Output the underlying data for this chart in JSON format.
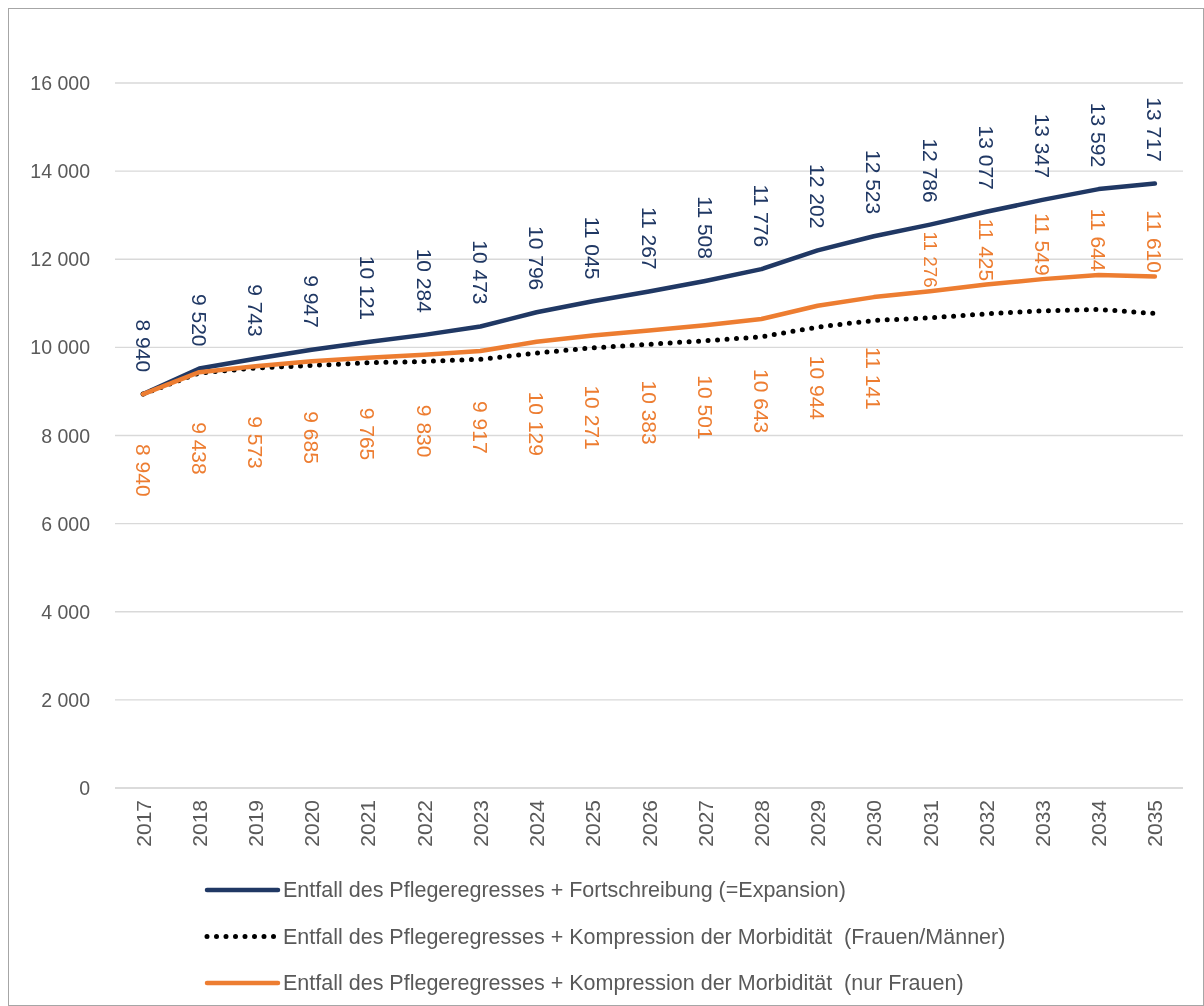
{
  "chart_data": {
    "type": "line",
    "categories": [
      "2017",
      "2018",
      "2019",
      "2020",
      "2021",
      "2022",
      "2023",
      "2024",
      "2025",
      "2026",
      "2027",
      "2028",
      "2029",
      "2030",
      "2031",
      "2032",
      "2033",
      "2034",
      "2035"
    ],
    "series": [
      {
        "name": "Entfall des Pflegeregresses + Fortschreibung (=Expansion)",
        "color": "#203864",
        "values": [
          8940,
          9520,
          9743,
          9947,
          10121,
          10284,
          10473,
          10796,
          11045,
          11267,
          11508,
          11776,
          12202,
          12523,
          12786,
          13077,
          13347,
          13592,
          13717
        ],
        "value_labels": [
          "8 940",
          "9 520",
          "9 743",
          "9 947",
          "10 121",
          "10 284",
          "10 473",
          "10 796",
          "11 045",
          "11 267",
          "11 508",
          "11 776",
          "12 202",
          "12 523",
          "12 786",
          "13 077",
          "13 347",
          "13 592",
          "13 717"
        ]
      },
      {
        "name": "Entfall des Pflegeregresses + Kompression der Morbidität  (Frauen/Männer)",
        "color": "#000000",
        "line_style": "dotted",
        "values": [
          8940,
          9420,
          9530,
          9590,
          9650,
          9680,
          9730,
          9870,
          9990,
          10070,
          10150,
          10240,
          10460,
          10610,
          10670,
          10760,
          10830,
          10860,
          10770
        ]
      },
      {
        "name": "Entfall des Pflegeregresses + Kompression der Morbidität  (nur Frauen)",
        "color": "#ed7d31",
        "values": [
          8940,
          9438,
          9573,
          9685,
          9765,
          9830,
          9917,
          10129,
          10271,
          10383,
          10501,
          10643,
          10944,
          11141,
          11276,
          11425,
          11549,
          11644,
          11610
        ],
        "value_labels": [
          "8 940",
          "9 438",
          "9 573",
          "9 685",
          "9 765",
          "9 830",
          "9 917",
          "10 129",
          "10 271",
          "10 383",
          "10 501",
          "10 643",
          "10 944",
          "11 141",
          "11 276",
          "11 425",
          "11 549",
          "11 644",
          "11 610"
        ]
      }
    ],
    "ylim": [
      0,
      16000
    ],
    "yticks": [
      0,
      {
        "value": 2000,
        "label": "2 000"
      },
      {
        "value": 4000,
        "label": "4 000"
      },
      {
        "value": 6000,
        "label": "6 000"
      },
      {
        "value": 8000,
        "label": "8 000"
      },
      {
        "value": 10000,
        "label": "10 000"
      },
      {
        "value": 12000,
        "label": "12 000"
      },
      {
        "value": 14000,
        "label": "14 000"
      },
      {
        "value": 16000,
        "label": "16 000"
      }
    ],
    "grid": "y",
    "legend": "bottom"
  }
}
